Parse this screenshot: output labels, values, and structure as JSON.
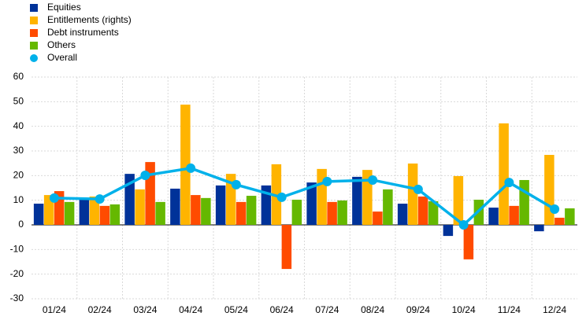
{
  "chart_data": {
    "type": "bar",
    "categories": [
      "01/24",
      "02/24",
      "03/24",
      "04/24",
      "05/24",
      "06/24",
      "07/24",
      "08/24",
      "09/24",
      "10/24",
      "11/24",
      "12/24"
    ],
    "series": [
      {
        "name": "Equities",
        "color": "#003299",
        "values": [
          8.6,
          10.2,
          20.7,
          14.7,
          16,
          16,
          17.2,
          19.5,
          8.6,
          -4.5,
          7,
          -2.6
        ]
      },
      {
        "name": "Entitlements (rights)",
        "color": "#ffb400",
        "values": [
          12.1,
          11.5,
          14.4,
          48.8,
          20.7,
          24.6,
          22.7,
          22.3,
          24.9,
          19.8,
          41.2,
          28.4
        ]
      },
      {
        "name": "Debt instruments",
        "color": "#ff4b00",
        "values": [
          13.7,
          7.7,
          25.5,
          12.1,
          9.3,
          -17.9,
          9.3,
          5.4,
          11.5,
          -14,
          7.7,
          2.9
        ]
      },
      {
        "name": "Others",
        "color": "#65b800",
        "values": [
          9.3,
          8.3,
          9.3,
          10.9,
          11.8,
          10.2,
          9.9,
          14.4,
          9.6,
          10.2,
          18.2,
          6.7
        ]
      },
      {
        "name": "Overall",
        "color": "#00b1ea",
        "type": "line",
        "values": [
          10.9,
          10.5,
          20.1,
          23,
          16.3,
          11.2,
          17.6,
          18.2,
          14.4,
          0,
          17.2,
          6.4
        ]
      }
    ],
    "ylim": [
      -30,
      60
    ],
    "yticks": [
      -30,
      -20,
      -10,
      0,
      10,
      20,
      30,
      40,
      50,
      60
    ],
    "grid": true,
    "legend": "top-left"
  }
}
